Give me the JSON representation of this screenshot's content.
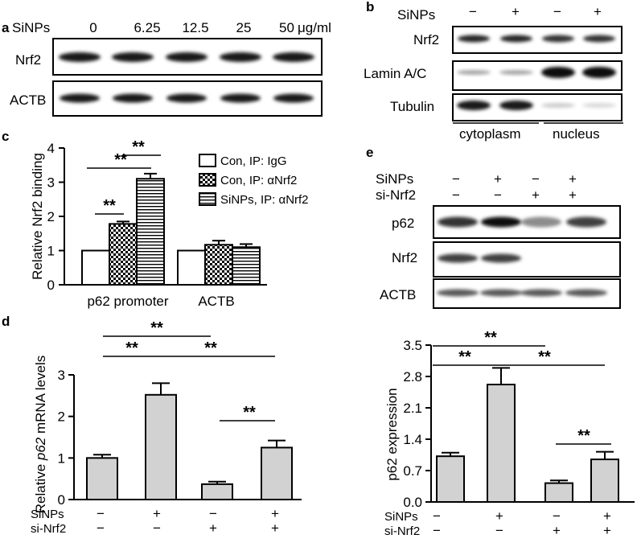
{
  "figure": {
    "panel_a": {
      "letter": "a",
      "treatment_label": "SiNPs",
      "doses": [
        "0",
        "6.25",
        "12.5",
        "25",
        "50"
      ],
      "unit": "μg/ml",
      "rows": [
        "Nrf2",
        "ACTB"
      ],
      "lanes": 5
    },
    "panel_b": {
      "letter": "b",
      "treatment_label": "SiNPs",
      "signs": [
        "−",
        "+",
        "−",
        "+"
      ],
      "rows": [
        "Nrf2",
        "Lamin A/C",
        "Tubulin"
      ],
      "fractions": [
        "cytoplasm",
        "nucleus"
      ],
      "lanes": 4
    },
    "panel_e": {
      "letter": "e",
      "conditions": [
        {
          "label": "SiNPs",
          "signs": [
            "−",
            "+",
            "−",
            "+"
          ]
        },
        {
          "label": "si-Nrf2",
          "signs": [
            "−",
            "−",
            "+",
            "+"
          ]
        }
      ],
      "rows": [
        "p62",
        "Nrf2",
        "ACTB"
      ],
      "lanes": 4
    },
    "panel_d_conditions": [
      {
        "label": "SiNPs",
        "signs": [
          "−",
          "+",
          "−",
          "+"
        ]
      },
      {
        "label": "si-Nrf2",
        "signs": [
          "−",
          "−",
          "+",
          "+"
        ]
      }
    ]
  },
  "chart_data": [
    {
      "panel": "c",
      "type": "bar",
      "ylabel": "Relative Nrf2 binding",
      "ylim": [
        0,
        4
      ],
      "yticks": [
        "0",
        "1",
        "2",
        "3",
        "4"
      ],
      "categories": [
        "p62 promoter",
        "ACTB"
      ],
      "legend": "top-right",
      "series": [
        {
          "name": "Con, IP: IgG",
          "pattern": "white",
          "values": [
            1.0,
            1.0
          ],
          "errors": [
            0,
            0
          ]
        },
        {
          "name": "Con, IP: αNrf2",
          "pattern": "checker",
          "values": [
            1.78,
            1.17
          ],
          "errors": [
            0.07,
            0.12
          ]
        },
        {
          "name": "SiNPs, IP: αNrf2",
          "pattern": "horizontal-stripes",
          "values": [
            3.1,
            1.1
          ],
          "errors": [
            0.15,
            0.09
          ]
        }
      ],
      "significance": [
        "**",
        "**",
        "**"
      ]
    },
    {
      "panel": "d-left",
      "type": "bar",
      "ylabel_prefix": "Relative ",
      "ylabel_italic": "p62",
      "ylabel_suffix": " mRNA levels",
      "ylim": [
        0,
        3
      ],
      "yticks": [
        "0",
        "1",
        "2",
        "3"
      ],
      "values": [
        1.0,
        2.52,
        0.37,
        1.25
      ],
      "errors": [
        0.08,
        0.28,
        0.06,
        0.17
      ],
      "bar_color": "#d2d2d2",
      "significance": [
        "**",
        "**",
        "**",
        "**"
      ]
    },
    {
      "panel": "d-right",
      "type": "bar",
      "ylabel": "p62 expression",
      "ylim": [
        0,
        3.5
      ],
      "yticks": [
        "0.0",
        "0.7",
        "1.4",
        "2.1",
        "2.8",
        "3.5"
      ],
      "values": [
        1.02,
        2.62,
        0.42,
        0.95
      ],
      "errors": [
        0.08,
        0.37,
        0.06,
        0.17
      ],
      "bar_color": "#d2d2d2",
      "significance": [
        "**",
        "**",
        "**",
        "**"
      ]
    }
  ]
}
